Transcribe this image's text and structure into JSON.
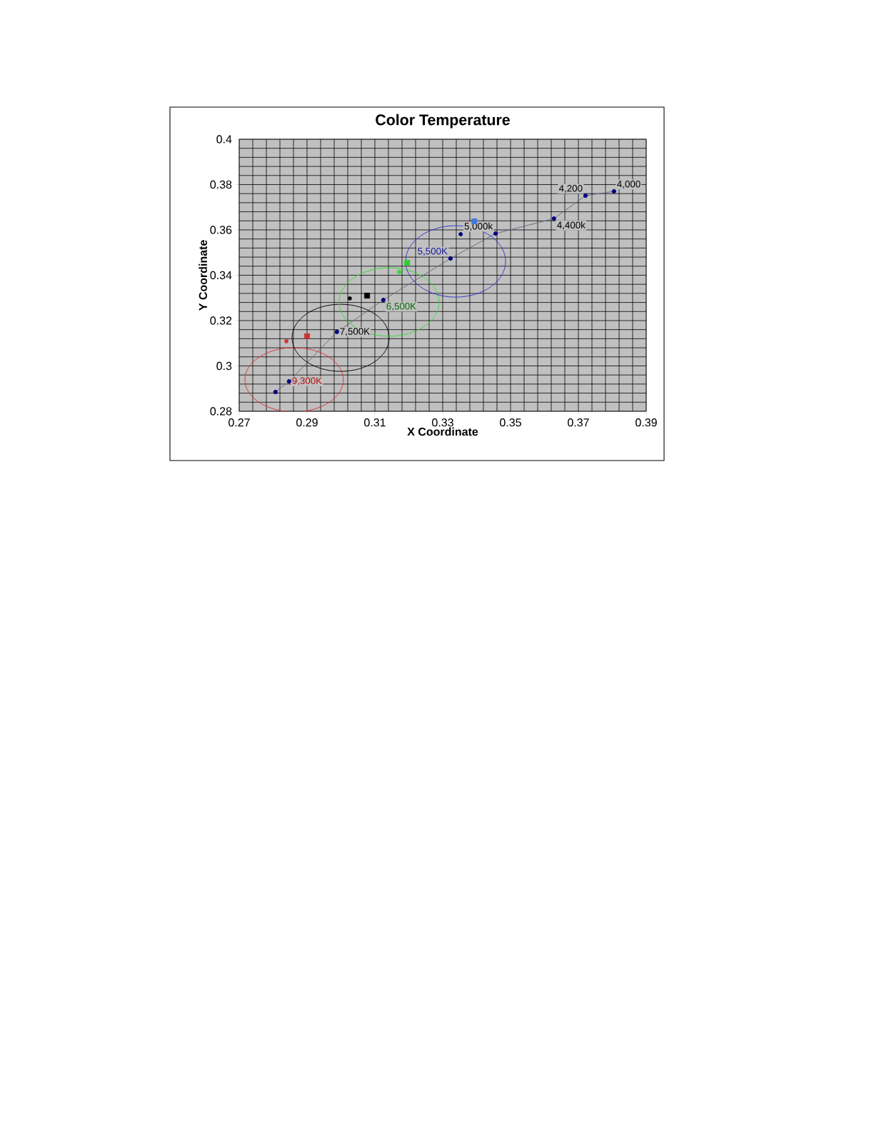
{
  "chart_data": {
    "type": "scatter",
    "title": "Color Temperature",
    "xlabel": "X Coordinate",
    "ylabel": "Y Coordinate",
    "xlim": [
      0.27,
      0.39
    ],
    "xticks": [
      0.27,
      0.29,
      0.31,
      0.33,
      0.35,
      0.37,
      0.39
    ],
    "ylim": [
      0.28,
      0.4
    ],
    "yticks": [
      0.28,
      0.3,
      0.32,
      0.34,
      0.36,
      0.38,
      0.4
    ],
    "grid": true,
    "marker": "circle",
    "series": [
      {
        "type": "line",
        "color": "#000080",
        "x": [
          0.2807,
          0.2847,
          0.2988,
          0.3125,
          0.3323,
          0.3456,
          0.3628,
          0.3721,
          0.3805
        ],
        "values": [
          0.2885,
          0.2932,
          0.315,
          0.3291,
          0.3474,
          0.3584,
          0.365,
          0.3751,
          0.377
        ]
      },
      {
        "color": "#cc3333",
        "x": [
          0.2839
        ],
        "values": [
          0.3109
        ]
      },
      {
        "color": "#cc3333",
        "marker": "square",
        "x": [
          0.29
        ],
        "values": [
          0.3131
        ]
      },
      {
        "color": "#000000",
        "x": [
          0.3026
        ],
        "values": [
          0.3298
        ]
      },
      {
        "color": "#000000",
        "marker": "square",
        "x": [
          0.3077
        ],
        "values": [
          0.331
        ]
      },
      {
        "color": "#33dd33",
        "x": [
          0.3172
        ],
        "values": [
          0.3414
        ]
      },
      {
        "color": "#33cc33",
        "marker": "square",
        "x": [
          0.3195
        ],
        "values": [
          0.3455
        ]
      },
      {
        "color": "#000080",
        "x": [
          0.3353
        ],
        "values": [
          0.3581
        ]
      },
      {
        "color": "#4477dd",
        "marker": "square",
        "x": [
          0.3393
        ],
        "values": [
          0.3638
        ]
      }
    ],
    "annotations": [
      {
        "text": "9,300K",
        "x": 0.2847,
        "y": 0.2932
      },
      {
        "text": "7,500K",
        "x": 0.2988,
        "y": 0.315
      },
      {
        "text": "6,500K",
        "x": 0.3125,
        "y": 0.3291
      },
      {
        "text": "5,500K",
        "x": 0.3323,
        "y": 0.3474
      },
      {
        "text": "5,000k",
        "x": 0.3456,
        "y": 0.3584
      },
      {
        "text": "4,400k",
        "x": 0.3628,
        "y": 0.365
      },
      {
        "text": "4,200",
        "x": 0.3721,
        "y": 0.3751
      },
      {
        "text": "4,000",
        "x": 0.3805,
        "y": 0.377
      }
    ]
  }
}
